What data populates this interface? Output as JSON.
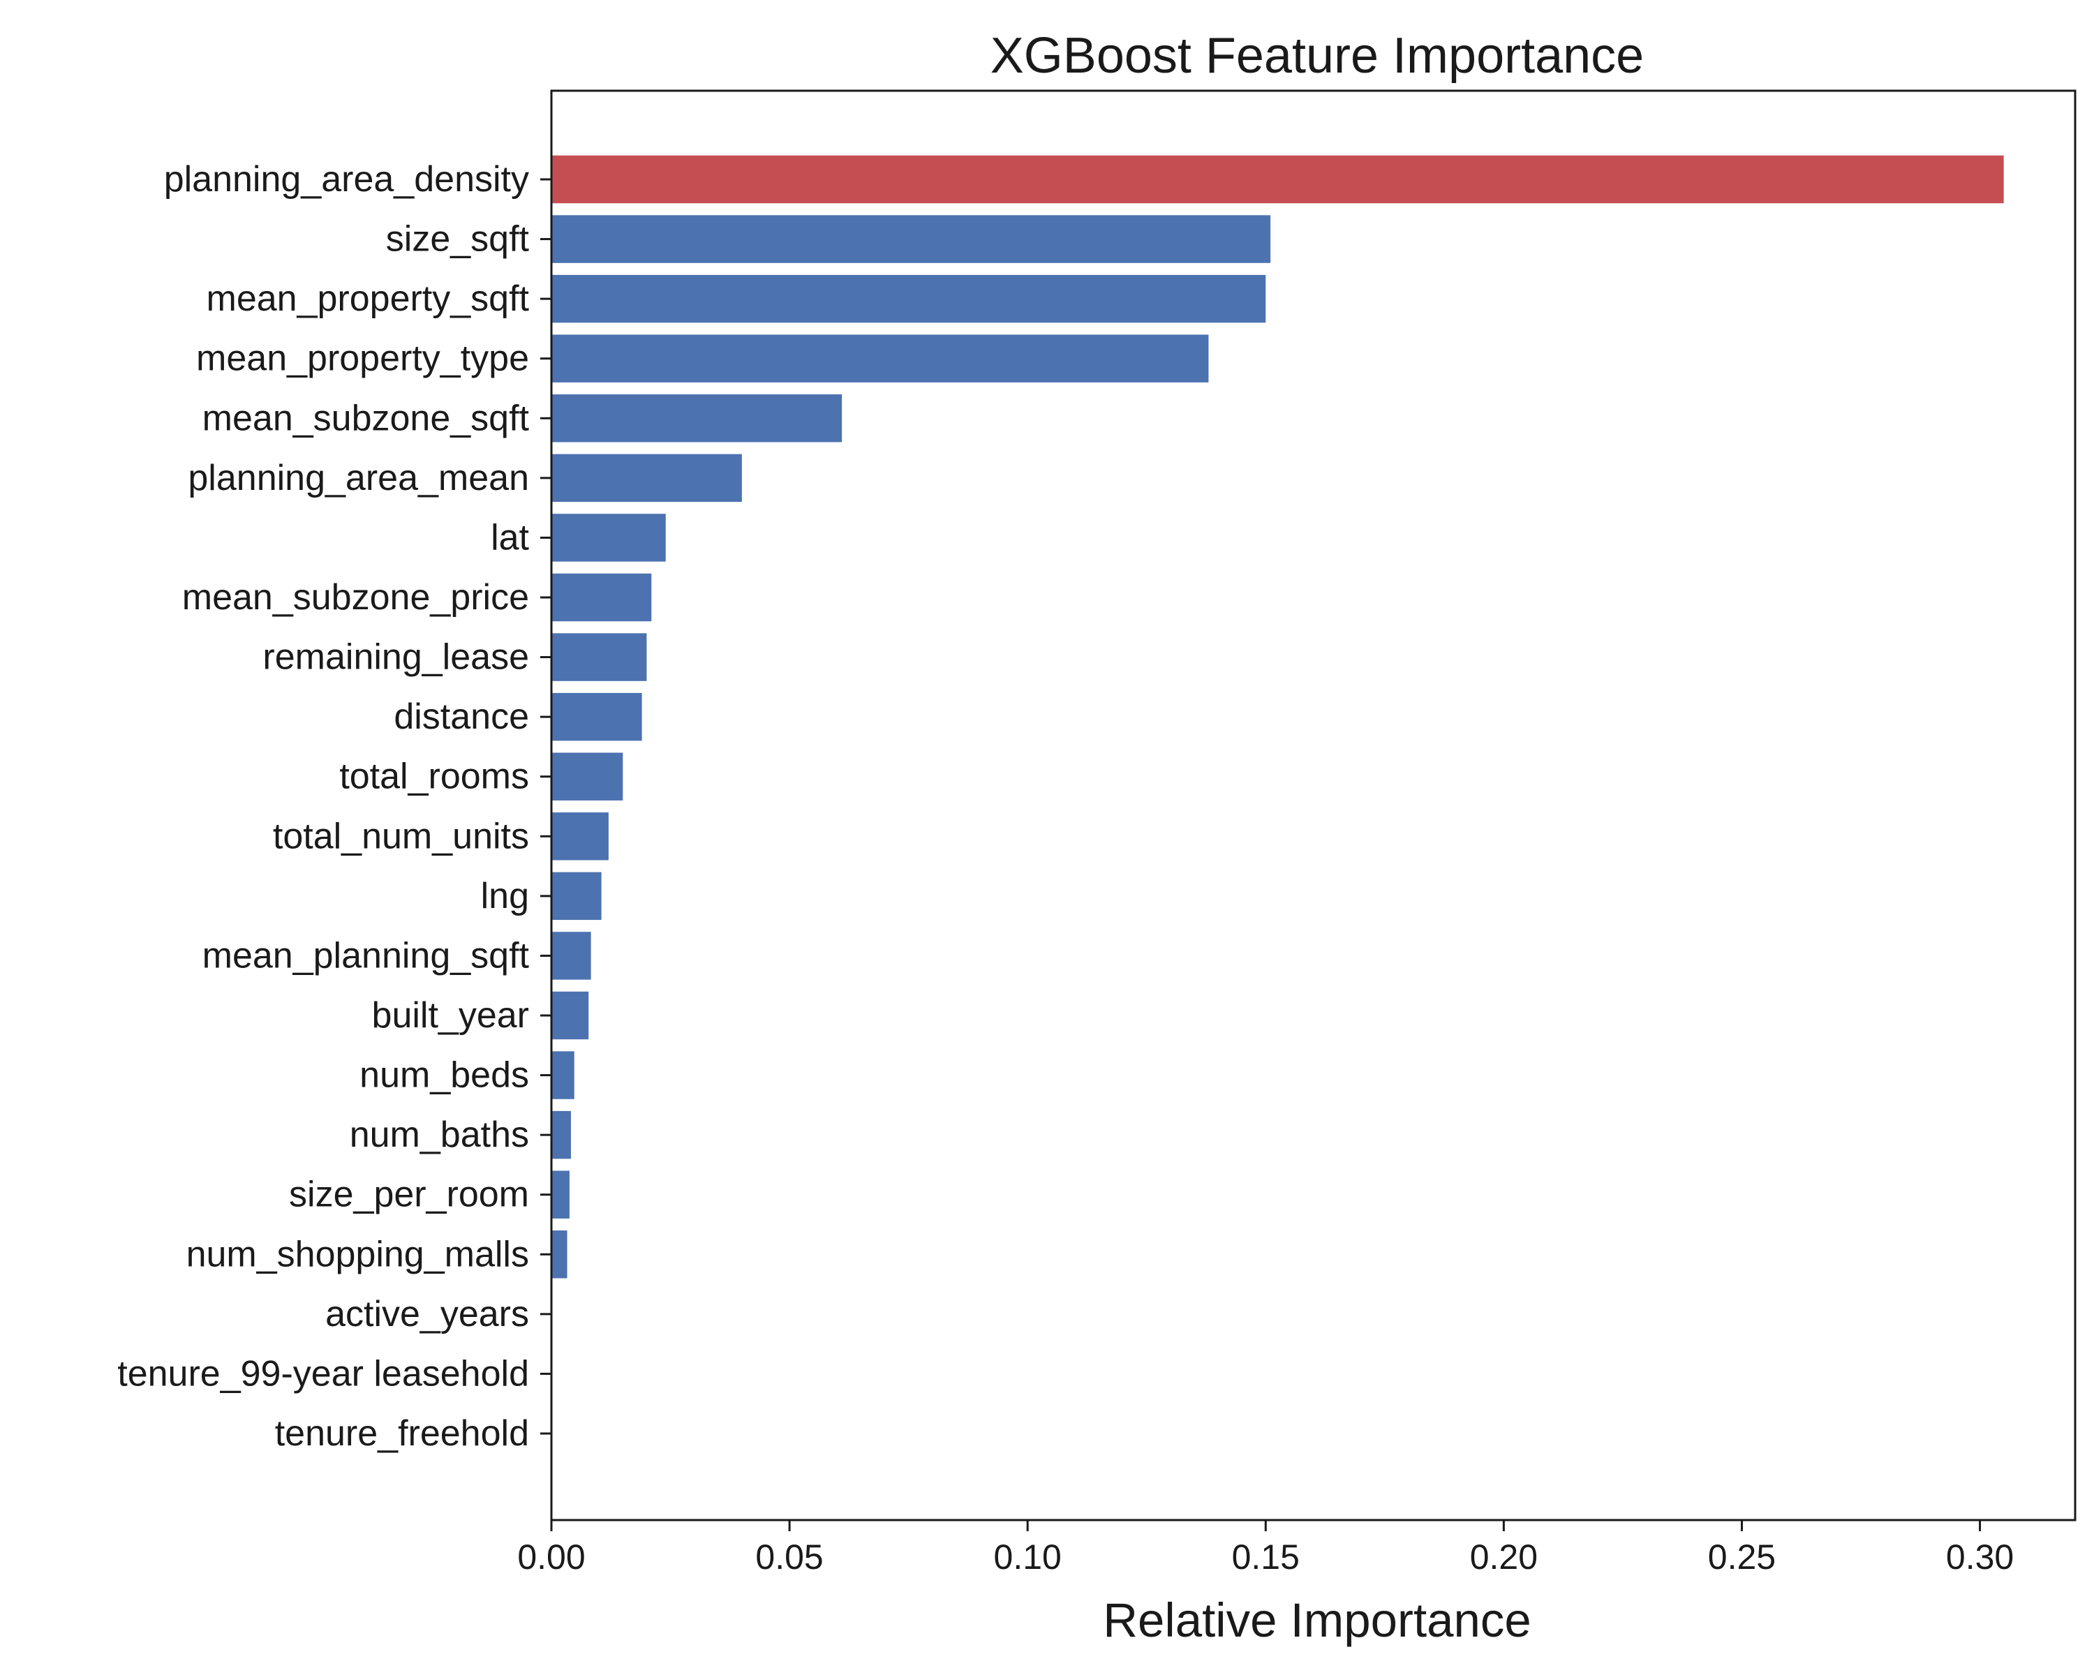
{
  "chart_data": {
    "type": "bar",
    "orientation": "horizontal",
    "title": "XGBoost Feature Importance",
    "xlabel": "Relative Importance",
    "ylabel": "",
    "xlim": [
      0,
      0.32
    ],
    "xticks": [
      "0.00",
      "0.05",
      "0.10",
      "0.15",
      "0.20",
      "0.25",
      "0.30"
    ],
    "xtick_values": [
      0,
      0.05,
      0.1,
      0.15,
      0.2,
      0.25,
      0.3
    ],
    "grid": false,
    "categories": [
      "planning_area_density",
      "size_sqft",
      "mean_property_sqft",
      "mean_property_type",
      "mean_subzone_sqft",
      "planning_area_mean",
      "lat",
      "mean_subzone_price",
      "remaining_lease",
      "distance",
      "total_rooms",
      "total_num_units",
      "lng",
      "mean_planning_sqft",
      "built_year",
      "num_beds",
      "num_baths",
      "size_per_room",
      "num_shopping_malls",
      "active_years",
      "tenure_99-year leasehold",
      "tenure_freehold"
    ],
    "values": [
      0.305,
      0.151,
      0.15,
      0.138,
      0.061,
      0.04,
      0.024,
      0.021,
      0.02,
      0.019,
      0.015,
      0.012,
      0.0105,
      0.0083,
      0.0078,
      0.0048,
      0.0041,
      0.0038,
      0.0033,
      0,
      0,
      0
    ],
    "colors": {
      "highlight": "#c44e52",
      "default": "#4c72b0"
    },
    "highlight_index": 0
  }
}
